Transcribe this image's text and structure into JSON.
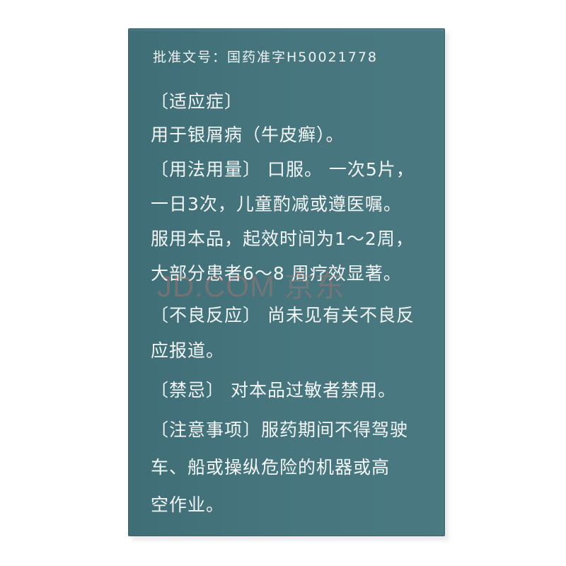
{
  "package": {
    "approval_number": "批准文号：国药准字H50021778",
    "lines": [
      "〔适应症〕",
      "用于银屑病（牛皮癣）。",
      "〔用法用量〕 口服。 一次5片，",
      "一日3次，儿童酌减或遵医嘱。",
      "服用本品，起效时间为1～2周，",
      "大部分患者6～8 周疗效显著。",
      "〔不良反应〕 尚未见有关不良反",
      "应报道。",
      "〔禁忌〕 对本品过敏者禁用。",
      "〔注意事项〕服药期间不得驾驶",
      "车、船或操纵危险的机器或高",
      "空作业。"
    ]
  },
  "watermark": "JD.COM 京东",
  "colors": {
    "box_background": "#46757e",
    "text": "#f3f6f6",
    "page_background": "#ffffff"
  }
}
